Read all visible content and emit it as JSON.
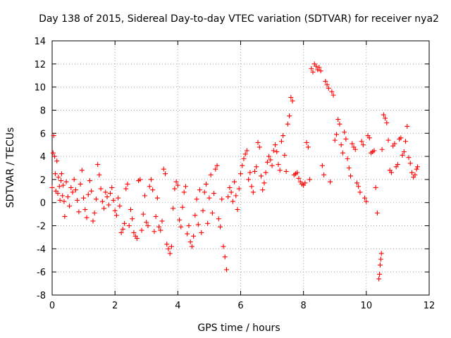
{
  "chart_data": {
    "type": "scatter",
    "title": "Day 138 of 2015, Sidereal Day-to-day VTEC variation (SDTVAR) for receiver nya2",
    "xlabel": "GPS time / hours",
    "ylabel": "SDTVAR / TECUs",
    "xlim": [
      0,
      12
    ],
    "ylim": [
      -8,
      14
    ],
    "xticks": [
      "0",
      "2",
      "4",
      "6",
      "8",
      "10",
      "12"
    ],
    "yticks": [
      "-8",
      "-6",
      "-4",
      "-2",
      "0",
      "2",
      "4",
      "6",
      "8",
      "10",
      "12",
      "14"
    ],
    "grid": true,
    "marker": "+",
    "color": "#ff0000",
    "series": [
      {
        "name": "SDTVAR",
        "points": [
          [
            0.0,
            1.3
          ],
          [
            0.03,
            4.3
          ],
          [
            0.05,
            5.8
          ],
          [
            0.08,
            4.0
          ],
          [
            0.1,
            2.5
          ],
          [
            0.12,
            1.0
          ],
          [
            0.15,
            3.6
          ],
          [
            0.18,
            0.8
          ],
          [
            0.2,
            2.2
          ],
          [
            0.23,
            1.4
          ],
          [
            0.25,
            0.2
          ],
          [
            0.28,
            1.9
          ],
          [
            0.3,
            2.5
          ],
          [
            0.33,
            0.6
          ],
          [
            0.35,
            1.5
          ],
          [
            0.38,
            0.1
          ],
          [
            0.4,
            -1.2
          ],
          [
            0.45,
            1.8
          ],
          [
            0.5,
            0.5
          ],
          [
            0.55,
            -0.3
          ],
          [
            0.6,
            1.3
          ],
          [
            0.65,
            0.9
          ],
          [
            0.7,
            2.0
          ],
          [
            0.75,
            1.1
          ],
          [
            0.8,
            0.2
          ],
          [
            0.85,
            -0.8
          ],
          [
            0.9,
            1.6
          ],
          [
            0.95,
            2.8
          ],
          [
            1.0,
            0.4
          ],
          [
            1.05,
            -0.6
          ],
          [
            1.1,
            -1.3
          ],
          [
            1.15,
            0.7
          ],
          [
            1.2,
            1.9
          ],
          [
            1.25,
            1.0
          ],
          [
            1.3,
            -1.6
          ],
          [
            1.35,
            -0.9
          ],
          [
            1.4,
            0.3
          ],
          [
            1.45,
            3.3
          ],
          [
            1.5,
            2.4
          ],
          [
            1.55,
            1.2
          ],
          [
            1.6,
            0.1
          ],
          [
            1.65,
            -0.5
          ],
          [
            1.7,
            0.9
          ],
          [
            1.75,
            0.5
          ],
          [
            1.8,
            -0.2
          ],
          [
            1.85,
            0.8
          ],
          [
            1.9,
            1.3
          ],
          [
            1.95,
            0.2
          ],
          [
            2.0,
            -0.7
          ],
          [
            2.05,
            -1.1
          ],
          [
            2.1,
            0.4
          ],
          [
            2.15,
            -0.3
          ],
          [
            2.2,
            -2.6
          ],
          [
            2.25,
            -2.3
          ],
          [
            2.3,
            -1.8
          ],
          [
            2.35,
            1.2
          ],
          [
            2.4,
            1.6
          ],
          [
            2.45,
            -2.0
          ],
          [
            2.5,
            -0.6
          ],
          [
            2.55,
            -1.4
          ],
          [
            2.6,
            -2.6
          ],
          [
            2.65,
            -2.9
          ],
          [
            2.7,
            -3.1
          ],
          [
            2.75,
            1.9
          ],
          [
            2.8,
            2.0
          ],
          [
            2.85,
            -2.4
          ],
          [
            2.9,
            -1.0
          ],
          [
            2.95,
            0.6
          ],
          [
            3.0,
            -1.7
          ],
          [
            3.05,
            -2.0
          ],
          [
            3.1,
            1.4
          ],
          [
            3.15,
            2.0
          ],
          [
            3.2,
            1.1
          ],
          [
            3.25,
            -2.5
          ],
          [
            3.3,
            -1.2
          ],
          [
            3.35,
            0.4
          ],
          [
            3.4,
            -2.1
          ],
          [
            3.45,
            -2.4
          ],
          [
            3.5,
            -1.6
          ],
          [
            3.55,
            2.9
          ],
          [
            3.6,
            2.5
          ],
          [
            3.65,
            -3.6
          ],
          [
            3.7,
            -4.0
          ],
          [
            3.75,
            -4.4
          ],
          [
            3.8,
            -3.8
          ],
          [
            3.85,
            -0.5
          ],
          [
            3.9,
            1.2
          ],
          [
            3.95,
            1.8
          ],
          [
            4.0,
            1.5
          ],
          [
            4.05,
            -1.5
          ],
          [
            4.1,
            -2.1
          ],
          [
            4.15,
            -0.4
          ],
          [
            4.2,
            0.9
          ],
          [
            4.25,
            1.4
          ],
          [
            4.3,
            -2.7
          ],
          [
            4.35,
            -2.0
          ],
          [
            4.4,
            -3.4
          ],
          [
            4.45,
            -3.8
          ],
          [
            4.5,
            -2.9
          ],
          [
            4.55,
            -1.1
          ],
          [
            4.6,
            0.3
          ],
          [
            4.65,
            -1.9
          ],
          [
            4.7,
            1.1
          ],
          [
            4.75,
            -2.6
          ],
          [
            4.8,
            -0.7
          ],
          [
            4.85,
            0.9
          ],
          [
            4.9,
            1.6
          ],
          [
            4.95,
            -1.8
          ],
          [
            5.0,
            0.4
          ],
          [
            5.05,
            2.4
          ],
          [
            5.1,
            -0.9
          ],
          [
            5.15,
            0.8
          ],
          [
            5.2,
            2.9
          ],
          [
            5.25,
            3.2
          ],
          [
            5.3,
            -1.4
          ],
          [
            5.35,
            -2.1
          ],
          [
            5.4,
            0.3
          ],
          [
            5.45,
            -3.8
          ],
          [
            5.5,
            -4.7
          ],
          [
            5.55,
            -5.8
          ],
          [
            5.6,
            0.5
          ],
          [
            5.65,
            1.3
          ],
          [
            5.7,
            0.9
          ],
          [
            5.75,
            0.1
          ],
          [
            5.8,
            1.8
          ],
          [
            5.85,
            0.6
          ],
          [
            5.9,
            -0.6
          ],
          [
            5.95,
            1.2
          ],
          [
            6.0,
            2.5
          ],
          [
            6.05,
            3.2
          ],
          [
            6.1,
            3.8
          ],
          [
            6.15,
            4.2
          ],
          [
            6.2,
            4.5
          ],
          [
            6.25,
            2.0
          ],
          [
            6.3,
            2.6
          ],
          [
            6.35,
            1.4
          ],
          [
            6.4,
            0.9
          ],
          [
            6.45,
            2.7
          ],
          [
            6.5,
            3.1
          ],
          [
            6.55,
            5.2
          ],
          [
            6.6,
            4.8
          ],
          [
            6.65,
            2.3
          ],
          [
            6.7,
            1.1
          ],
          [
            6.75,
            1.7
          ],
          [
            6.8,
            2.6
          ],
          [
            6.85,
            3.5
          ],
          [
            6.9,
            4.0
          ],
          [
            6.95,
            3.7
          ],
          [
            7.0,
            3.2
          ],
          [
            7.05,
            4.5
          ],
          [
            7.1,
            5.0
          ],
          [
            7.15,
            4.4
          ],
          [
            7.2,
            3.3
          ],
          [
            7.25,
            2.8
          ],
          [
            7.3,
            5.3
          ],
          [
            7.35,
            5.8
          ],
          [
            7.4,
            4.1
          ],
          [
            7.45,
            2.7
          ],
          [
            7.5,
            6.8
          ],
          [
            7.55,
            7.5
          ],
          [
            7.6,
            9.1
          ],
          [
            7.65,
            8.8
          ],
          [
            7.7,
            2.4
          ],
          [
            7.75,
            2.5
          ],
          [
            7.8,
            2.6
          ],
          [
            7.85,
            2.1
          ],
          [
            7.9,
            1.8
          ],
          [
            7.95,
            1.6
          ],
          [
            8.0,
            1.5
          ],
          [
            8.05,
            1.7
          ],
          [
            8.1,
            5.2
          ],
          [
            8.15,
            4.8
          ],
          [
            8.2,
            2.0
          ],
          [
            8.25,
            11.6
          ],
          [
            8.3,
            11.3
          ],
          [
            8.35,
            12.0
          ],
          [
            8.4,
            11.8
          ],
          [
            8.45,
            11.5
          ],
          [
            8.5,
            11.7
          ],
          [
            8.55,
            11.4
          ],
          [
            8.6,
            3.2
          ],
          [
            8.65,
            2.4
          ],
          [
            8.7,
            10.5
          ],
          [
            8.75,
            10.2
          ],
          [
            8.8,
            9.9
          ],
          [
            8.85,
            1.8
          ],
          [
            8.9,
            9.6
          ],
          [
            8.95,
            9.3
          ],
          [
            9.0,
            5.4
          ],
          [
            9.05,
            5.9
          ],
          [
            9.1,
            7.2
          ],
          [
            9.15,
            6.8
          ],
          [
            9.2,
            5.0
          ],
          [
            9.25,
            4.3
          ],
          [
            9.3,
            6.1
          ],
          [
            9.35,
            5.5
          ],
          [
            9.4,
            3.8
          ],
          [
            9.45,
            3.0
          ],
          [
            9.5,
            2.3
          ],
          [
            9.55,
            5.1
          ],
          [
            9.6,
            4.8
          ],
          [
            9.65,
            4.6
          ],
          [
            9.7,
            1.7
          ],
          [
            9.75,
            1.4
          ],
          [
            9.8,
            0.9
          ],
          [
            9.85,
            5.3
          ],
          [
            9.9,
            5.0
          ],
          [
            9.95,
            0.4
          ],
          [
            10.0,
            0.1
          ],
          [
            10.05,
            5.8
          ],
          [
            10.1,
            5.6
          ],
          [
            10.15,
            4.3
          ],
          [
            10.2,
            4.4
          ],
          [
            10.25,
            4.5
          ],
          [
            10.3,
            1.3
          ],
          [
            10.35,
            -0.9
          ],
          [
            10.4,
            -6.6
          ],
          [
            10.42,
            -6.2
          ],
          [
            10.44,
            -5.4
          ],
          [
            10.46,
            -4.9
          ],
          [
            10.48,
            -4.4
          ],
          [
            10.5,
            4.6
          ],
          [
            10.55,
            7.6
          ],
          [
            10.6,
            7.3
          ],
          [
            10.65,
            6.9
          ],
          [
            10.7,
            5.4
          ],
          [
            10.75,
            2.8
          ],
          [
            10.8,
            2.6
          ],
          [
            10.85,
            4.9
          ],
          [
            10.9,
            5.1
          ],
          [
            10.95,
            3.1
          ],
          [
            11.0,
            3.3
          ],
          [
            11.05,
            5.5
          ],
          [
            11.1,
            5.6
          ],
          [
            11.15,
            4.1
          ],
          [
            11.2,
            4.4
          ],
          [
            11.25,
            5.3
          ],
          [
            11.3,
            6.6
          ],
          [
            11.35,
            3.9
          ],
          [
            11.4,
            3.4
          ],
          [
            11.45,
            2.6
          ],
          [
            11.5,
            2.2
          ],
          [
            11.55,
            2.4
          ],
          [
            11.6,
            2.9
          ],
          [
            11.63,
            3.1
          ]
        ]
      }
    ]
  }
}
